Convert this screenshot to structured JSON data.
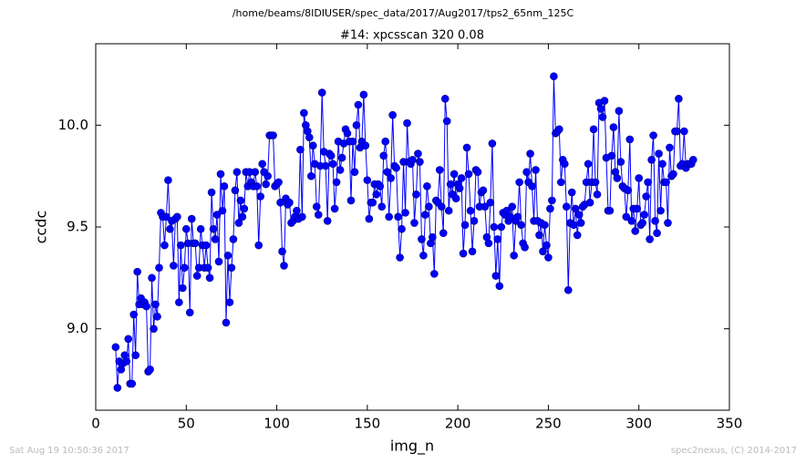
{
  "chart_data": {
    "type": "line",
    "header": "/home/beams/8IDIUSER/spec_data/2017/Aug2017/tps2_65nm_125C",
    "title": "#14: xpcsscan 320 0.08",
    "xlabel": "img_n",
    "ylabel": "ccdc",
    "footer_left": "Sat Aug 19 10:50:36 2017",
    "footer_right": "spec2nexus, (C) 2014-2017",
    "color": "#0000ff",
    "marker_edge": "#000080",
    "xlim": [
      0,
      350
    ],
    "xticks": [
      0,
      50,
      100,
      150,
      200,
      250,
      300,
      350
    ],
    "ylim": [
      8.6,
      10.4
    ],
    "yticks": [
      {
        "value": 9,
        "label": "9.0"
      },
      9.5,
      {
        "value": 10,
        "label": "10.0"
      }
    ],
    "grid": false,
    "x": [
      11,
      12,
      13,
      14,
      15,
      16,
      17,
      18,
      19,
      20,
      21,
      22,
      23,
      24,
      25,
      26,
      27,
      28,
      29,
      30,
      31,
      32,
      33,
      34,
      35,
      36,
      37,
      38,
      39,
      40,
      41,
      42,
      43,
      44,
      45,
      46,
      47,
      48,
      49,
      50,
      51,
      52,
      53,
      54,
      55,
      56,
      57,
      58,
      59,
      60,
      61,
      62,
      63,
      64,
      65,
      66,
      67,
      68,
      69,
      70,
      71,
      72,
      73,
      74,
      75,
      76,
      77,
      78,
      79,
      80,
      81,
      82,
      83,
      84,
      85,
      86,
      87,
      88,
      89,
      90,
      91,
      92,
      93,
      94,
      95,
      96,
      97,
      98,
      99,
      100,
      101,
      102,
      103,
      104,
      105,
      106,
      107,
      108,
      109,
      110,
      111,
      112,
      113,
      114,
      115,
      116,
      117,
      118,
      119,
      120,
      121,
      122,
      123,
      124,
      125,
      126,
      127,
      128,
      129,
      130,
      131,
      132,
      133,
      134,
      135,
      136,
      137,
      138,
      139,
      140,
      141,
      142,
      143,
      144,
      145,
      146,
      147,
      148,
      149,
      150,
      151,
      152,
      153,
      154,
      155,
      156,
      157,
      158,
      159,
      160,
      161,
      162,
      163,
      164,
      165,
      166,
      167,
      168,
      169,
      170,
      171,
      172,
      173,
      174,
      175,
      176,
      177,
      178,
      179,
      180,
      181,
      182,
      183,
      184,
      185,
      186,
      187,
      188,
      189,
      190,
      191,
      192,
      193,
      194,
      195,
      196,
      197,
      198,
      199,
      200,
      201,
      202,
      203,
      204,
      205,
      206,
      207,
      208,
      209,
      210,
      211,
      212,
      213,
      214,
      215,
      216,
      217,
      218,
      219,
      220,
      221,
      222,
      223,
      224,
      225,
      226,
      227,
      228,
      229,
      230,
      231,
      232,
      233,
      234,
      235,
      236,
      237,
      238,
      239,
      240,
      241,
      242,
      243,
      244,
      245,
      246,
      247,
      248,
      249,
      250,
      251,
      252,
      253,
      254,
      255,
      256,
      257,
      258,
      259,
      260,
      261,
      262,
      263,
      264,
      265,
      266,
      267,
      268,
      269,
      270,
      271,
      272,
      273,
      274,
      275,
      276,
      277,
      278,
      279,
      280,
      281,
      282,
      283,
      284,
      285,
      286,
      287,
      288,
      289,
      290,
      291,
      292,
      293,
      294,
      295,
      296,
      297,
      298,
      299,
      300,
      301,
      302,
      303,
      304,
      305,
      306,
      307,
      308,
      309,
      310,
      311,
      312,
      313,
      314,
      315,
      316,
      317,
      318,
      319,
      320,
      321,
      322,
      323,
      324,
      325,
      326,
      327,
      328,
      329,
      330
    ],
    "values": [
      8.91,
      8.71,
      8.84,
      8.8,
      8.83,
      8.87,
      8.84,
      8.95,
      8.73,
      8.73,
      9.07,
      8.87,
      9.28,
      9.12,
      9.15,
      9.12,
      9.13,
      9.11,
      8.79,
      8.8,
      9.25,
      9.0,
      9.12,
      9.06,
      9.3,
      9.57,
      9.55,
      9.41,
      9.55,
      9.73,
      9.49,
      9.53,
      9.31,
      9.54,
      9.55,
      9.13,
      9.41,
      9.2,
      9.3,
      9.49,
      9.42,
      9.08,
      9.54,
      9.42,
      9.42,
      9.26,
      9.3,
      9.49,
      9.41,
      9.3,
      9.41,
      9.3,
      9.25,
      9.67,
      9.49,
      9.44,
      9.56,
      9.33,
      9.76,
      9.58,
      9.7,
      9.03,
      9.36,
      9.13,
      9.3,
      9.44,
      9.68,
      9.77,
      9.52,
      9.63,
      9.55,
      9.59,
      9.77,
      9.7,
      9.77,
      9.72,
      9.7,
      9.77,
      9.7,
      9.41,
      9.65,
      9.81,
      9.77,
      9.71,
      9.75,
      9.95,
      9.95,
      9.95,
      9.7,
      9.71,
      9.72,
      9.62,
      9.38,
      9.31,
      9.64,
      9.61,
      9.62,
      9.52,
      9.53,
      9.55,
      9.58,
      9.54,
      9.88,
      9.55,
      10.06,
      10.0,
      9.97,
      9.94,
      9.75,
      9.9,
      9.81,
      9.6,
      9.56,
      9.8,
      10.16,
      9.87,
      9.8,
      9.53,
      9.86,
      9.85,
      9.81,
      9.59,
      9.72,
      9.92,
      9.78,
      9.84,
      9.91,
      9.98,
      9.96,
      9.92,
      9.63,
      9.92,
      9.77,
      10.0,
      10.1,
      9.89,
      9.92,
      10.15,
      9.9,
      9.73,
      9.54,
      9.62,
      9.62,
      9.71,
      9.66,
      9.71,
      9.7,
      9.6,
      9.85,
      9.92,
      9.77,
      9.55,
      9.74,
      10.05,
      9.8,
      9.79,
      9.55,
      9.35,
      9.49,
      9.82,
      9.57,
      10.01,
      9.82,
      9.81,
      9.83,
      9.52,
      9.66,
      9.86,
      9.82,
      9.44,
      9.36,
      9.56,
      9.7,
      9.6,
      9.42,
      9.45,
      9.27,
      9.63,
      9.62,
      9.78,
      9.6,
      9.47,
      10.13,
      10.02,
      9.58,
      9.71,
      9.66,
      9.76,
      9.64,
      9.71,
      9.69,
      9.74,
      9.37,
      9.51,
      9.89,
      9.76,
      9.58,
      9.38,
      9.53,
      9.78,
      9.77,
      9.6,
      9.67,
      9.68,
      9.6,
      9.45,
      9.42,
      9.62,
      9.91,
      9.5,
      9.26,
      9.44,
      9.21,
      9.5,
      9.57,
      9.56,
      9.58,
      9.53,
      9.55,
      9.6,
      9.36,
      9.53,
      9.55,
      9.72,
      9.51,
      9.42,
      9.4,
      9.77,
      9.72,
      9.86,
      9.7,
      9.53,
      9.78,
      9.53,
      9.46,
      9.52,
      9.38,
      9.51,
      9.41,
      9.35,
      9.59,
      9.63,
      10.24,
      9.96,
      9.97,
      9.98,
      9.72,
      9.83,
      9.81,
      9.6,
      9.19,
      9.52,
      9.67,
      9.51,
      9.59,
      9.46,
      9.56,
      9.52,
      9.6,
      9.61,
      9.72,
      9.81,
      9.62,
      9.72,
      9.98,
      9.72,
      9.66,
      10.11,
      10.08,
      10.04,
      10.12,
      9.84,
      9.58,
      9.58,
      9.85,
      9.99,
      9.77,
      9.74,
      10.07,
      9.82,
      9.7,
      9.69,
      9.55,
      9.68,
      9.93,
      9.53,
      9.59,
      9.48,
      9.59,
      9.74,
      9.51,
      9.52,
      9.56,
      9.65,
      9.72,
      9.44,
      9.83,
      9.95,
      9.53,
      9.47,
      9.86,
      9.58,
      9.81,
      9.72,
      9.72,
      9.52,
      9.89,
      9.75,
      9.76,
      9.97,
      9.97,
      10.13,
      9.8,
      9.81,
      9.97,
      9.79,
      9.81,
      9.81,
      9.81,
      9.83
    ]
  }
}
